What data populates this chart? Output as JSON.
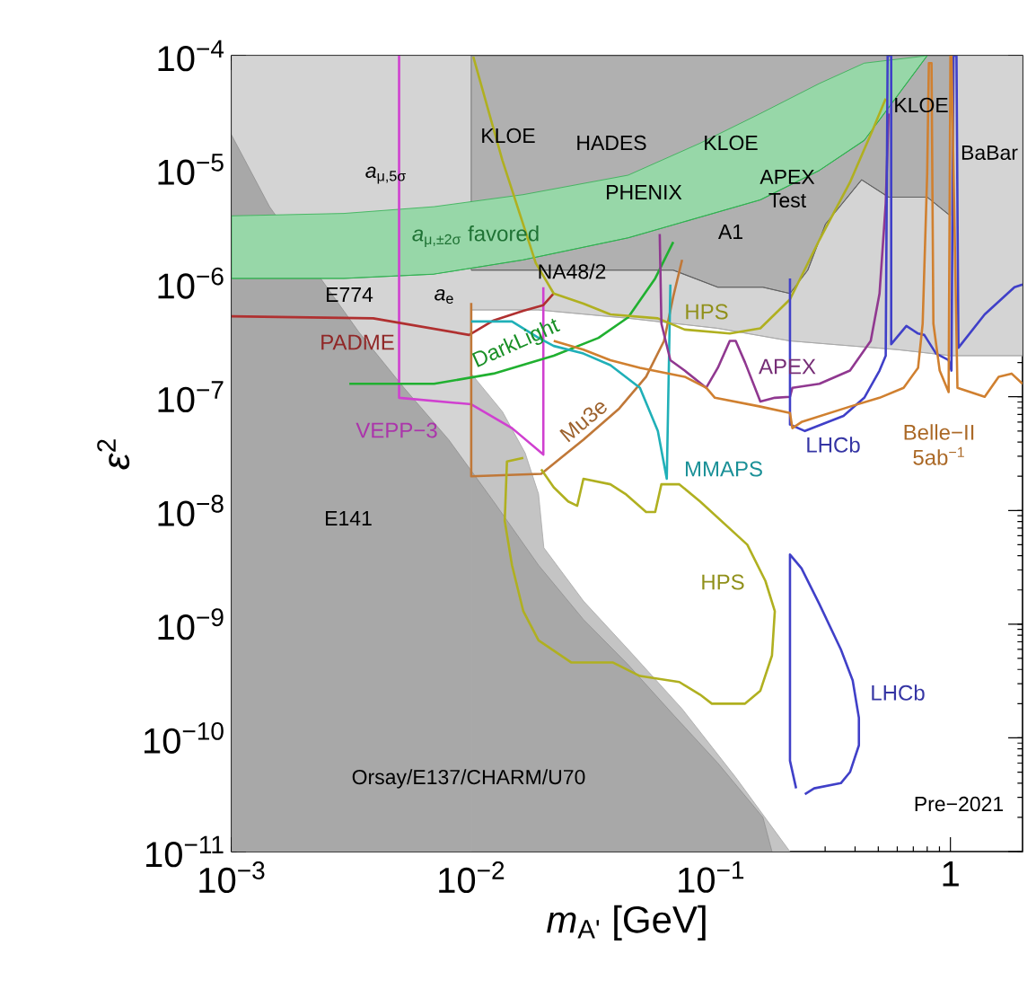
{
  "chart_data": {
    "type": "line",
    "log": "xy",
    "xlabel": "*m*$_{A'}$ [GeV]",
    "ylabel": "*ε*$^{2}$",
    "xlim": [
      0.001,
      2
    ],
    "ylim": [
      1e-11,
      0.0001
    ],
    "xticks": [
      {
        "value": 0.001,
        "label": "10$^{−3}$"
      },
      {
        "value": 0.01,
        "label": "10$^{−2}$"
      },
      {
        "value": 0.1,
        "label": "10$^{−1}$"
      },
      1
    ],
    "yticks": [
      {
        "value": 1e-11,
        "label": "10$^{−11}$"
      },
      {
        "value": 1e-10,
        "label": "10$^{−10}$"
      },
      {
        "value": 1e-09,
        "label": "10$^{−9}$"
      },
      {
        "value": 1e-08,
        "label": "10$^{−8}$"
      },
      {
        "value": 1e-07,
        "label": "10$^{−7}$"
      },
      {
        "value": 1e-06,
        "label": "10$^{−6}$"
      },
      {
        "value": 1e-05,
        "label": "10$^{−5}$"
      },
      {
        "value": 0.0001,
        "label": "10$^{−4}$"
      }
    ],
    "series": [
      {
        "color": "#a9a9a9",
        "x": [
          0.001,
          0.01,
          0.01,
          0.0191,
          0.0452,
          0.107,
          0.214,
          0.391,
          0.601,
          1.0,
          2
        ],
        "values": [
          1e-11,
          1e-11,
          5.8e-07,
          5.8e-07,
          4.9e-07,
          4e-07,
          3.1e-07,
          2.8e-07,
          2.6e-07,
          2.3e-07,
          2.3e-07
        ],
        "lower": [
          1e-11,
          1e-11,
          5.8e-07,
          5.8e-07,
          4.9e-07,
          4e-07,
          3.1e-07,
          2.8e-07,
          2.6e-07,
          2.3e-07,
          2.3e-07
        ],
        "upper": [
          0.0001,
          0.0001,
          0.0001,
          0.0001,
          0.0001,
          0.0001,
          0.0001,
          0.0001,
          0.0001,
          0.0001,
          0.0001
        ]
      },
      {
        "color": "#616161",
        "x": [
          0.01,
          0.0191,
          0.0452,
          0.0697,
          0.107,
          0.165,
          0.214,
          0.254,
          0.301,
          0.426,
          0.552,
          0.8,
          1.0
        ],
        "values": [
          1.3e-06,
          1.3e-06,
          1.3e-06,
          1.3e-06,
          9.2e-07,
          9.2e-07,
          8.1e-07,
          1.3e-06,
          3.3e-06,
          8.1e-06,
          5.7e-06,
          5.7e-06,
          3.9e-06
        ],
        "lower": [
          1.3e-06,
          1.3e-06,
          1.3e-06,
          1.3e-06,
          9.2e-07,
          9.2e-07,
          8.1e-07,
          1.3e-06,
          3.3e-06,
          8.1e-06,
          5.7e-06,
          5.7e-06,
          3.9e-06
        ],
        "upper": [
          0.0001,
          0.0001,
          0.0001,
          0.0001,
          0.0001,
          0.0001,
          0.0001,
          0.0001,
          0.0001,
          0.0001,
          0.0001,
          0.0001,
          0.0001
        ]
      },
      {
        "type": "area",
        "color": "#c4c4c4",
        "x": [
          0.01,
          0.0135,
          0.0168,
          0.0191,
          0.0201,
          0.0294,
          0.0452,
          0.0759,
          0.127,
          0.214
        ],
        "values": [
          1.6e-07,
          7.4e-08,
          3.2e-08,
          1.4e-08,
          4.7e-09,
          1.6e-09,
          6e-10,
          1.8e-10,
          4.5e-11,
          1e-11
        ]
      },
      {
        "type": "area",
        "color": "#a8a8a8",
        "x": [
          0.001,
          0.00144,
          0.00221,
          0.0034,
          0.00524,
          0.00805,
          0.0124,
          0.0191,
          0.0294,
          0.0452,
          0.0697,
          0.107,
          0.165,
          0.18
        ],
        "values": [
          2e-05,
          4.7e-06,
          null,
          3.7e-07,
          1.2e-07,
          4.2e-08,
          1.2e-08,
          3.3e-09,
          1.1e-09,
          4.4e-10,
          1.6e-10,
          6e-11,
          2e-11,
          1e-11
        ]
      },
      {
        "name": "*a*$_{μ,±2σ}$ favored",
        "color": "#30b050",
        "x": [
          0.001,
          0.00294,
          0.007,
          0.0165,
          0.0452,
          0.0902,
          0.161,
          0.284,
          0.437,
          0.8
        ],
        "values": [
          1.1e-06,
          1.1e-06,
          1.2e-06,
          1.6e-06,
          2.5e-06,
          3.8e-06,
          5.4e-06,
          9.8e-06,
          1.8e-05,
          0.0001
        ],
        "lower": [
          1.1e-06,
          1.1e-06,
          1.2e-06,
          1.6e-06,
          2.5e-06,
          3.8e-06,
          5.4e-06,
          9.8e-06,
          1.8e-05,
          0.0001
        ],
        "upper": [
          3.9e-06,
          4.1e-06,
          4.7e-06,
          6e-06,
          8.9e-06,
          1.7e-05,
          3.1e-05,
          5.7e-05,
          8.6e-05,
          0.0001
        ]
      },
      {
        "name": "VEPP−3",
        "color": "#d040d0",
        "x": [
          0.005,
          0.005,
          0.01,
          0.0148,
          0.02,
          0.02
        ],
        "values": [
          0.0001,
          9.8e-08,
          8.6e-08,
          5.3e-08,
          3.1e-08,
          9.2e-07
        ]
      },
      {
        "name": "PADME",
        "color": "#b03030",
        "x": [
          0.001,
          0.0039,
          0.0098,
          0.0124,
          0.0165,
          0.02,
          0.0221
        ],
        "values": [
          5.1e-07,
          4.9e-07,
          3.5e-07,
          4.7e-07,
          5.7e-07,
          6.4e-07,
          8.1e-07
        ]
      },
      {
        "name": "Mu3e",
        "color": "#c07838",
        "x": [
          0.01,
          0.01,
          0.0196,
          0.0294,
          0.0415,
          0.0537,
          0.0638,
          0.0697,
          0.0759
        ],
        "values": [
          6.7e-07,
          2e-08,
          2.1e-08,
          4.2e-08,
          7.9e-08,
          1.5e-07,
          3.1e-07,
          7.6e-07,
          1.6e-06
        ]
      },
      {
        "name": "DarkLight",
        "color": "#20b030",
        "x": [
          0.0031,
          0.007,
          0.0124,
          0.0221,
          0.034,
          0.0452,
          0.0586,
          0.0697
        ],
        "values": [
          1.3e-07,
          1.3e-07,
          1.6e-07,
          2.3e-07,
          3.3e-07,
          5e-07,
          1.1e-06,
          2.3e-06
        ]
      },
      {
        "name": "MMAPS",
        "color": "#20b0b8",
        "x": [
          0.01,
          0.0148,
          0.0191,
          0.0221,
          0.0294,
          0.0381,
          0.0506,
          0.0601,
          0.0655,
          0.0678
        ],
        "values": [
          4.6e-07,
          4.6e-07,
          3.3e-07,
          2.8e-07,
          2.4e-07,
          1.9e-07,
          1.2e-07,
          5e-08,
          1.9e-08,
          9.7e-07
        ]
      },
      {
        "name": "HPS",
        "color": "#b0b020",
        "x": [
          0.0102,
          0.0135,
          0.0186,
          0.0221,
          0.0294,
          0.0381,
          0.0601,
          0.0778,
          0.12,
          0.161,
          0.214,
          0.284,
          0.381,
          0.477,
          0.537
        ],
        "values": [
          9.8e-05,
          1.2e-05,
          1.5e-06,
          8.1e-07,
          6.6e-07,
          5.3e-07,
          4.9e-07,
          3.9e-07,
          3.6e-07,
          4e-07,
          7.2e-07,
          2.4e-06,
          7.7e-06,
          2.3e-05,
          4.2e-05
        ]
      },
      {
        "name": "HPS",
        "color": "#b0b020",
        "x": [
          0.0165,
          0.0141,
          0.0138,
          0.0148,
          0.0165,
          0.0191,
          0.0262,
          0.0391,
          0.0506,
          0.0739,
          0.0902,
          0.101,
          0.139,
          0.161,
          0.18,
          0.185,
          0.169,
          0.142,
          0.0902,
          0.0739,
          0.0622,
          0.0586,
          0.0537,
          0.044,
          0.0381,
          0.0294,
          0.0277,
          0.0254,
          0.0221,
          0.0196
        ],
        "values": [
          2.9e-08,
          2.7e-08,
          8.1e-09,
          3.3e-09,
          1.3e-09,
          7.2e-10,
          4.6e-10,
          4.6e-10,
          3.5e-10,
          3.1e-10,
          2.4e-10,
          2e-10,
          2e-10,
          2.6e-10,
          5.3e-10,
          1.3e-09,
          2.4e-09,
          5e-09,
          1.2e-08,
          1.7e-08,
          1.7e-08,
          9.7e-09,
          9.7e-09,
          1.4e-08,
          1.7e-08,
          1.9e-08,
          1.1e-08,
          1.2e-08,
          1.6e-08,
          2.3e-08
        ]
      },
      {
        "name": "APEX",
        "color": "#903890",
        "x": [
          0.0612,
          0.0622,
          0.0678,
          0.0778,
          0.0957,
          0.107,
          0.12,
          0.127,
          0.139,
          0.161,
          0.185,
          0.214,
          0.219,
          0.284,
          0.381,
          0.465,
          0.506,
          0.537,
          0.552
        ],
        "values": [
          2.7e-06,
          4.4e-07,
          2.1e-07,
          1.7e-07,
          1.2e-07,
          1.8e-07,
          3.1e-07,
          3.1e-07,
          2e-07,
          9.1e-08,
          9.8e-08,
          1e-07,
          1.2e-07,
          1.3e-07,
          1.7e-07,
          3.1e-07,
          8.1e-07,
          5e-06,
          3.1e-05
        ]
      },
      {
        "name": "LHCb",
        "color": "#4040c8",
        "x": [
          0.214,
          0.214,
          0.247,
          0.358,
          0.437,
          0.506,
          0.537,
          0.547,
          0.566,
          0.566,
          0.655,
          0.733,
          0.778,
          0.871,
          0.983,
          1.01,
          1.03,
          1.06,
          1.08,
          1.39,
          1.85,
          2
        ],
        "values": [
          1.1e-06,
          5.7e-08,
          5e-08,
          6.8e-08,
          9.8e-08,
          1.7e-07,
          2.3e-07,
          0.0001,
          0.0001,
          2.9e-07,
          4.2e-07,
          3.6e-07,
          3.5e-07,
          2.4e-07,
          2.1e-07,
          1.7e-07,
          0.0001,
          0.0001,
          2.7e-07,
          5.3e-07,
          9.2e-07,
          9.7e-07
        ]
      },
      {
        "name": "LHCb",
        "color": "#4040c8",
        "x": [
          0.227,
          0.214,
          0.214,
          0.239,
          0.284,
          0.349,
          0.391,
          0.415,
          0.415,
          0.381,
          0.349,
          0.27,
          0.247
        ],
        "values": [
          3.6e-11,
          6.3e-11,
          4.1e-09,
          3.1e-09,
          1.5e-09,
          6e-10,
          3.2e-10,
          1.5e-10,
          8.6e-11,
          5e-11,
          4e-11,
          3.6e-11,
          3.2e-11
        ]
      },
      {
        "name": "Belle−II 5ab$^{−1}$",
        "color": "#d08030",
        "x": [
          0.0221,
          0.0294,
          0.0381,
          0.0506,
          0.0778,
          0.0957,
          0.104,
          0.161,
          0.214,
          0.219,
          0.239,
          0.381,
          0.506,
          0.638,
          0.733,
          0.766,
          0.8,
          0.813,
          0.834,
          0.849,
          0.902,
          0.983,
          1.0,
          1.01,
          1.07,
          1.39,
          1.59,
          1.8,
          2
        ],
        "values": [
          3.1e-07,
          2.6e-07,
          2.1e-07,
          1.8e-07,
          1.5e-07,
          1.2e-07,
          9.8e-08,
          8.2e-08,
          7.2e-08,
          5.3e-08,
          6e-08,
          8.2e-08,
          9.8e-08,
          1.2e-07,
          1.8e-07,
          4.4e-07,
          9.2e-06,
          8.6e-05,
          8.6e-05,
          4.4e-07,
          1.7e-07,
          1.1e-07,
          0.0001,
          0.0001,
          1.2e-07,
          1e-07,
          1.5e-07,
          1.6e-07,
          1.3e-07
        ]
      }
    ],
    "annotations": [
      "KLOE",
      "HADES",
      "KLOE",
      "PHENIX",
      "APEX Test",
      "A1",
      "NA48/2",
      "*a*$_{μ,5σ}$",
      "E774",
      "*a*$_{e}$",
      "E141",
      "Orsay/E137/CHARM/U70",
      "KLOE",
      "BaBar",
      "Pre−2021"
    ]
  }
}
